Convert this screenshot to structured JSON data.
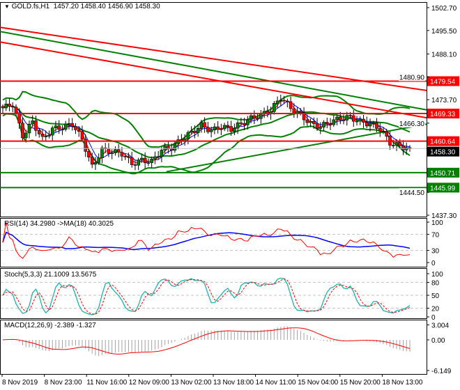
{
  "header": {
    "symbol": "GOLD.fs,H1",
    "ohlc": "1457.20 1458.40 1456.90 1458.30"
  },
  "colors": {
    "bull": "#008000",
    "bear": "#ff0000",
    "level_red": "#ff0000",
    "level_green": "#008000",
    "bands": "#008000",
    "ma_fast": "#ff0000",
    "ma_slow": "#0000ff",
    "stoch_main": "#20b2aa",
    "macd_hist": "#a0a0a0"
  },
  "chart_data": [
    {
      "type": "candlestick",
      "title": "GOLD.fs,H1",
      "ylim": [
        1437.3,
        1502.7
      ],
      "y_ticks": [
        "1502.70",
        "1495.50",
        "1488.10",
        "1480.90",
        "1473.70",
        "1466.30",
        "1444.50",
        "1437.30"
      ],
      "x_ticks": [
        "8 Nov 2019",
        "8 Nov 23:00",
        "11 Nov 16:00",
        "12 Nov 09:00",
        "13 Nov 02:00",
        "13 Nov 18:00",
        "14 Nov 11:00",
        "15 Nov 04:00",
        "15 Nov 20:00",
        "18 Nov 13:00"
      ],
      "close_path": [
        1471.1,
        1472.2,
        1462.3,
        1466.7,
        1461.2,
        1464.5,
        1465.0,
        1466.1,
        1461.2,
        1452.5,
        1457.9,
        1457.3,
        1456.8,
        1453.5,
        1454.6,
        1454.2,
        1457.9,
        1458.6,
        1461.2,
        1463.4,
        1465.6,
        1463.9,
        1465.2,
        1464.5,
        1466.1,
        1467.8,
        1468.9,
        1470.4,
        1474.4,
        1471.1,
        1468.9,
        1466.1,
        1465.2,
        1466.7,
        1467.8,
        1468.2,
        1466.7,
        1466.1,
        1464.5,
        1460.1,
        1459.0,
        1458.3
      ],
      "levels": [
        {
          "price": 1479.54,
          "label": "1479.54",
          "color": "red"
        },
        {
          "price": 1469.33,
          "label": "1469.33",
          "color": "red"
        },
        {
          "price": 1460.64,
          "label": "1460.64",
          "color": "red"
        },
        {
          "price": 1450.71,
          "label": "1450.71",
          "color": "green"
        },
        {
          "price": 1445.99,
          "label": "1445.99",
          "color": "green"
        }
      ],
      "current_price": {
        "price": 1458.3,
        "label": "1458.30"
      },
      "trendlines": [
        {
          "from": 1496.5,
          "to": 1476.6,
          "color": "red"
        },
        {
          "from": 1491.9,
          "to": 1468.0,
          "color": "red"
        },
        {
          "from": 1495.2,
          "to": 1470.5,
          "color": "green"
        },
        {
          "from": 1451.0,
          "to": 1466.0,
          "color": "green",
          "start_fraction": 0.39
        }
      ]
    },
    {
      "type": "line",
      "title": "RSI(14) 34.2980 ->MA(18) 40.3025",
      "ylim": [
        0,
        100
      ],
      "y_ticks": [
        "100",
        "70",
        "30",
        "0"
      ],
      "levels": [
        70,
        30
      ]
    },
    {
      "type": "line",
      "title": "Stoch(5,3,3) 21.1009 13.5675",
      "ylim": [
        0,
        100
      ],
      "y_ticks": [
        "100",
        "80",
        "50",
        "20",
        "0"
      ],
      "levels": [
        80,
        50,
        20
      ]
    },
    {
      "type": "bar",
      "title": "MACD(12,26,9) -2.389 -1.327",
      "ylim": [
        -6.149,
        3.004
      ],
      "y_ticks": [
        "3.004",
        "0.00",
        "-6.149"
      ]
    }
  ]
}
